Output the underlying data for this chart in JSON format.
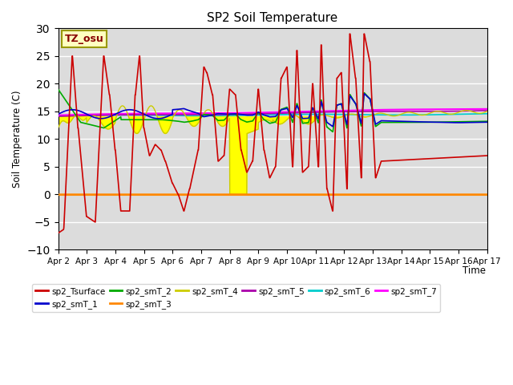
{
  "title": "SP2 Soil Temperature",
  "ylabel": "Soil Temperature (C)",
  "xlabel": "Time",
  "ylim": [
    -10,
    30
  ],
  "bg_color": "#dcdcdc",
  "fig_bg_color": "#ffffff",
  "tz_label": "TZ_osu",
  "legend": [
    {
      "label": "sp2_Tsurface",
      "color": "#cc0000",
      "lw": 1.2
    },
    {
      "label": "sp2_smT_1",
      "color": "#0000cc",
      "lw": 1.2
    },
    {
      "label": "sp2_smT_2",
      "color": "#00aa00",
      "lw": 1.2
    },
    {
      "label": "sp2_smT_3",
      "color": "#ff8800",
      "lw": 1.5
    },
    {
      "label": "sp2_smT_4",
      "color": "#cccc00",
      "lw": 1.0
    },
    {
      "label": "sp2_smT_5",
      "color": "#aa00aa",
      "lw": 1.2
    },
    {
      "label": "sp2_smT_6",
      "color": "#00cccc",
      "lw": 1.2
    },
    {
      "label": "sp2_smT_7",
      "color": "#ff00ff",
      "lw": 1.5
    }
  ],
  "xticks_days": [
    0,
    1,
    2,
    3,
    4,
    5,
    6,
    7,
    8,
    9,
    10,
    11,
    12,
    13,
    14,
    15
  ],
  "xtick_labels": [
    "Apr 2",
    "Apr 3",
    "Apr 4",
    "Apr 5",
    "Apr 6",
    "Apr 7",
    "Apr 8",
    "Apr 9",
    "Apr 10",
    "Apr 11",
    "Apr 12",
    "Apr 13",
    "Apr 14",
    "Apr 15",
    "Apr 16",
    "Apr 17"
  ]
}
